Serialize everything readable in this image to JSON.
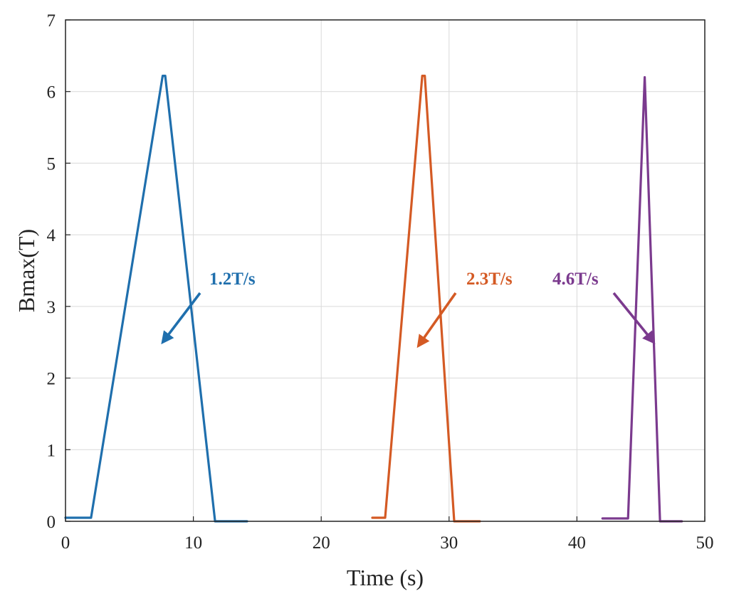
{
  "chart_data": {
    "type": "line",
    "title": "",
    "xlabel": "Time (s)",
    "ylabel": "Bmax(T)",
    "xlim": [
      0,
      50
    ],
    "ylim": [
      0,
      7
    ],
    "xticks": [
      "0",
      "10",
      "20",
      "30",
      "40",
      "50"
    ],
    "yticks": [
      "0",
      "1",
      "2",
      "3",
      "4",
      "5",
      "6",
      "7"
    ],
    "grid": true,
    "series": [
      {
        "name": "1.2T/s",
        "color": "#1f6fad",
        "x": [
          0,
          2,
          7.6,
          7.8,
          11.7,
          14.2
        ],
        "y": [
          0.05,
          0.05,
          6.22,
          6.22,
          0.0,
          0.0
        ]
      },
      {
        "name": "2.3T/s",
        "color": "#d45a24",
        "x": [
          24,
          25,
          27.9,
          28.1,
          30.4,
          32.4
        ],
        "y": [
          0.05,
          0.05,
          6.22,
          6.22,
          0.0,
          0.0
        ]
      },
      {
        "name": "4.6T/s",
        "color": "#7b3a8e",
        "x": [
          42,
          44,
          45.3,
          46.5,
          48.2
        ],
        "y": [
          0.04,
          0.04,
          6.2,
          0.0,
          0.0
        ]
      }
    ],
    "annotations": [
      {
        "text": "1.2T/s",
        "color": "#1f6fad",
        "arrow_to": [
          7.6,
          2.5
        ]
      },
      {
        "text": "2.3T/s",
        "color": "#d45a24",
        "arrow_to": [
          27.6,
          2.45
        ]
      },
      {
        "text": "4.6T/s",
        "color": "#7b3a8e",
        "arrow_to": [
          46.0,
          2.5
        ]
      }
    ]
  }
}
